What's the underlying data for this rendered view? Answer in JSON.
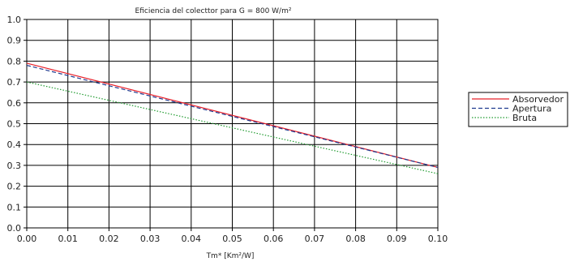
{
  "chart_data": {
    "type": "line",
    "title": "Eficiencia del colecttor para G = 800 W/m²",
    "xlabel": "Tm* [Km²/W]",
    "ylabel": "",
    "xlim": [
      0,
      0.1
    ],
    "ylim": [
      0,
      1
    ],
    "x_ticks": [
      "0.00",
      "0.01",
      "0.02",
      "0.03",
      "0.04",
      "0.05",
      "0.06",
      "0.07",
      "0.08",
      "0.09",
      "0.10"
    ],
    "y_ticks": [
      "0.0",
      "0.1",
      "0.2",
      "0.3",
      "0.4",
      "0.5",
      "0.6",
      "0.7",
      "0.8",
      "0.9",
      "1.0"
    ],
    "grid": true,
    "legend_position": "right",
    "series": [
      {
        "name": "Absorvedor",
        "color": "#e8202a",
        "dash": "solid",
        "x": [
          0.0,
          0.1
        ],
        "y": [
          0.79,
          0.29
        ]
      },
      {
        "name": "Apertura",
        "color": "#1f3a8f",
        "dash": "dashed",
        "x": [
          0.0,
          0.1
        ],
        "y": [
          0.78,
          0.29
        ]
      },
      {
        "name": "Bruta",
        "color": "#1f9a2e",
        "dash": "dotted",
        "x": [
          0.0,
          0.1
        ],
        "y": [
          0.7,
          0.26
        ]
      }
    ]
  }
}
